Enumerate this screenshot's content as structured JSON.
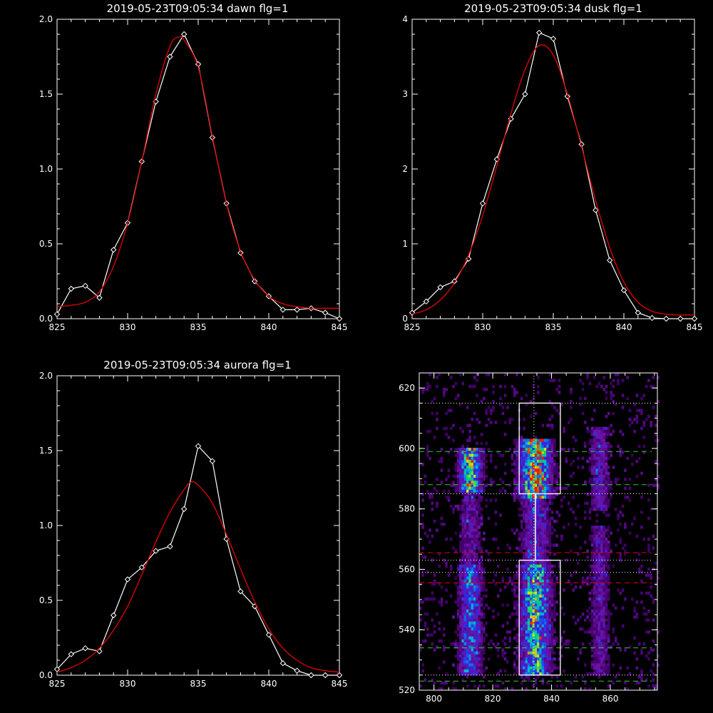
{
  "colors": {
    "background": "#000000",
    "axis": "#ffffff",
    "data_line": "#ffffff",
    "fit_line": "#e60000"
  },
  "chart_data": [
    {
      "type": "line",
      "title": "2019-05-23T09:05:34 dawn flg=1",
      "xlim": [
        825,
        845
      ],
      "ylim": [
        0,
        2.0
      ],
      "xticks": [
        "825",
        "830",
        "835",
        "840",
        "845"
      ],
      "yticks": [
        "0.0",
        "0.5",
        "1.0",
        "1.5",
        "2.0"
      ],
      "series": [
        {
          "kind": "data",
          "x": [
            825,
            826,
            827,
            828,
            829,
            830,
            831,
            832,
            833,
            834,
            835,
            836,
            837,
            838,
            839,
            840,
            841,
            842,
            843,
            844,
            845
          ],
          "y": [
            0.03,
            0.2,
            0.22,
            0.14,
            0.46,
            0.64,
            1.05,
            1.45,
            1.75,
            1.9,
            1.7,
            1.21,
            0.77,
            0.44,
            0.25,
            0.15,
            0.06,
            0.06,
            0.07,
            0.04,
            -0.02
          ]
        },
        {
          "kind": "fit",
          "x": [
            825,
            826,
            827,
            828,
            829,
            830,
            831,
            832,
            833,
            833.6,
            834,
            835,
            836,
            837,
            838,
            839,
            840,
            841,
            842,
            843,
            844,
            845
          ],
          "y": [
            0.08,
            0.09,
            0.11,
            0.18,
            0.35,
            0.64,
            1.05,
            1.5,
            1.82,
            1.88,
            1.86,
            1.68,
            1.22,
            0.77,
            0.45,
            0.26,
            0.15,
            0.1,
            0.08,
            0.07,
            0.07,
            0.07
          ]
        }
      ]
    },
    {
      "type": "line",
      "title": "2019-05-23T09:05:34 dusk flg=1",
      "xlim": [
        825,
        845
      ],
      "ylim": [
        0,
        4
      ],
      "xticks": [
        "825",
        "830",
        "835",
        "840",
        "845"
      ],
      "yticks": [
        "0",
        "1",
        "2",
        "3",
        "4"
      ],
      "series": [
        {
          "kind": "data",
          "x": [
            825,
            826,
            827,
            828,
            829,
            830,
            831,
            832,
            833,
            834,
            835,
            836,
            837,
            838,
            839,
            840,
            841,
            842,
            843,
            844,
            845
          ],
          "y": [
            0.08,
            0.23,
            0.42,
            0.5,
            0.8,
            1.54,
            2.13,
            2.67,
            3.0,
            3.82,
            3.74,
            2.97,
            2.33,
            1.45,
            0.78,
            0.38,
            0.08,
            0.01,
            -0.01,
            -0.02,
            -0.01
          ]
        },
        {
          "kind": "fit",
          "x": [
            825,
            826,
            827,
            828,
            829,
            830,
            831,
            832,
            833,
            834,
            835,
            836,
            837,
            838,
            839,
            840,
            841,
            842,
            843,
            844,
            845
          ],
          "y": [
            0.06,
            0.12,
            0.25,
            0.48,
            0.85,
            1.38,
            2.04,
            2.74,
            3.33,
            3.65,
            3.52,
            3.0,
            2.3,
            1.58,
            0.95,
            0.49,
            0.22,
            0.1,
            0.06,
            0.05,
            0.05
          ]
        }
      ]
    },
    {
      "type": "line",
      "title": "2019-05-23T09:05:34 aurora flg=1",
      "xlim": [
        825,
        845
      ],
      "ylim": [
        0,
        2.0
      ],
      "xticks": [
        "825",
        "830",
        "835",
        "840",
        "845"
      ],
      "yticks": [
        "0.0",
        "0.5",
        "1.0",
        "1.5",
        "2.0"
      ],
      "series": [
        {
          "kind": "data",
          "x": [
            825,
            826,
            827,
            828,
            829,
            830,
            831,
            832,
            833,
            834,
            835,
            836,
            837,
            838,
            839,
            840,
            841,
            842,
            843,
            844,
            845
          ],
          "y": [
            0.04,
            0.14,
            0.18,
            0.16,
            0.4,
            0.64,
            0.72,
            0.83,
            0.86,
            1.11,
            1.53,
            1.43,
            0.91,
            0.56,
            0.46,
            0.27,
            0.08,
            0.03,
            -0.01,
            -0.02,
            -0.02
          ]
        },
        {
          "kind": "fit",
          "x": [
            825,
            826,
            827,
            828,
            829,
            830,
            831,
            832,
            833,
            834,
            834.5,
            835,
            836,
            837,
            838,
            839,
            840,
            841,
            842,
            843,
            844,
            845
          ],
          "y": [
            0.02,
            0.05,
            0.1,
            0.18,
            0.3,
            0.46,
            0.67,
            0.89,
            1.09,
            1.24,
            1.29,
            1.27,
            1.15,
            0.94,
            0.71,
            0.49,
            0.31,
            0.18,
            0.1,
            0.05,
            0.03,
            0.02
          ]
        }
      ]
    },
    {
      "type": "heatmap",
      "title": "",
      "xlim": [
        795,
        876
      ],
      "ylim": [
        520,
        625
      ],
      "xticks": [
        "800",
        "820",
        "840",
        "860"
      ],
      "yticks": [
        "520",
        "540",
        "560",
        "580",
        "600",
        "620"
      ],
      "bands": [
        {
          "x_center": 812,
          "width": 7,
          "segments": [
            {
              "y0": 525,
              "y1": 562,
              "intensity": 0.55
            },
            {
              "y0": 586,
              "y1": 601,
              "intensity": 0.8
            },
            {
              "y0": 562,
              "y1": 586,
              "intensity": 0.3
            }
          ]
        },
        {
          "x_center": 834,
          "width": 9,
          "segments": [
            {
              "y0": 525,
              "y1": 562,
              "intensity": 0.75
            },
            {
              "y0": 584,
              "y1": 604,
              "intensity": 1.0
            },
            {
              "y0": 562,
              "y1": 584,
              "intensity": 0.4
            }
          ]
        },
        {
          "x_center": 856,
          "width": 6,
          "segments": [
            {
              "y0": 525,
              "y1": 575,
              "intensity": 0.3
            },
            {
              "y0": 580,
              "y1": 608,
              "intensity": 0.35
            }
          ]
        }
      ],
      "boxes": [
        {
          "x0": 829,
          "x1": 843,
          "y0": 525,
          "y1": 563
        },
        {
          "x0": 829,
          "x1": 843,
          "y0": 585,
          "y1": 615
        }
      ],
      "vline_dotted_x": 834,
      "hlines": [
        {
          "y": 615,
          "style": "dotted",
          "color": "#ffffff"
        },
        {
          "y": 599,
          "style": "dashed",
          "color": "#33cc33"
        },
        {
          "y": 588,
          "style": "dashed",
          "color": "#33cc33"
        },
        {
          "y": 585,
          "style": "dotted",
          "color": "#ffffff"
        },
        {
          "y": 565.5,
          "style": "dashed",
          "color": "#e60000"
        },
        {
          "y": 563,
          "style": "dotted",
          "color": "#ffffff"
        },
        {
          "y": 559,
          "style": "dotted",
          "color": "#ffffff"
        },
        {
          "y": 555.5,
          "style": "dashed",
          "color": "#e60000"
        },
        {
          "y": 534,
          "style": "dashed",
          "color": "#33cc33"
        },
        {
          "y": 525,
          "style": "dotted",
          "color": "#ffffff"
        },
        {
          "y": 523,
          "style": "dashed",
          "color": "#33cc33"
        }
      ]
    }
  ]
}
